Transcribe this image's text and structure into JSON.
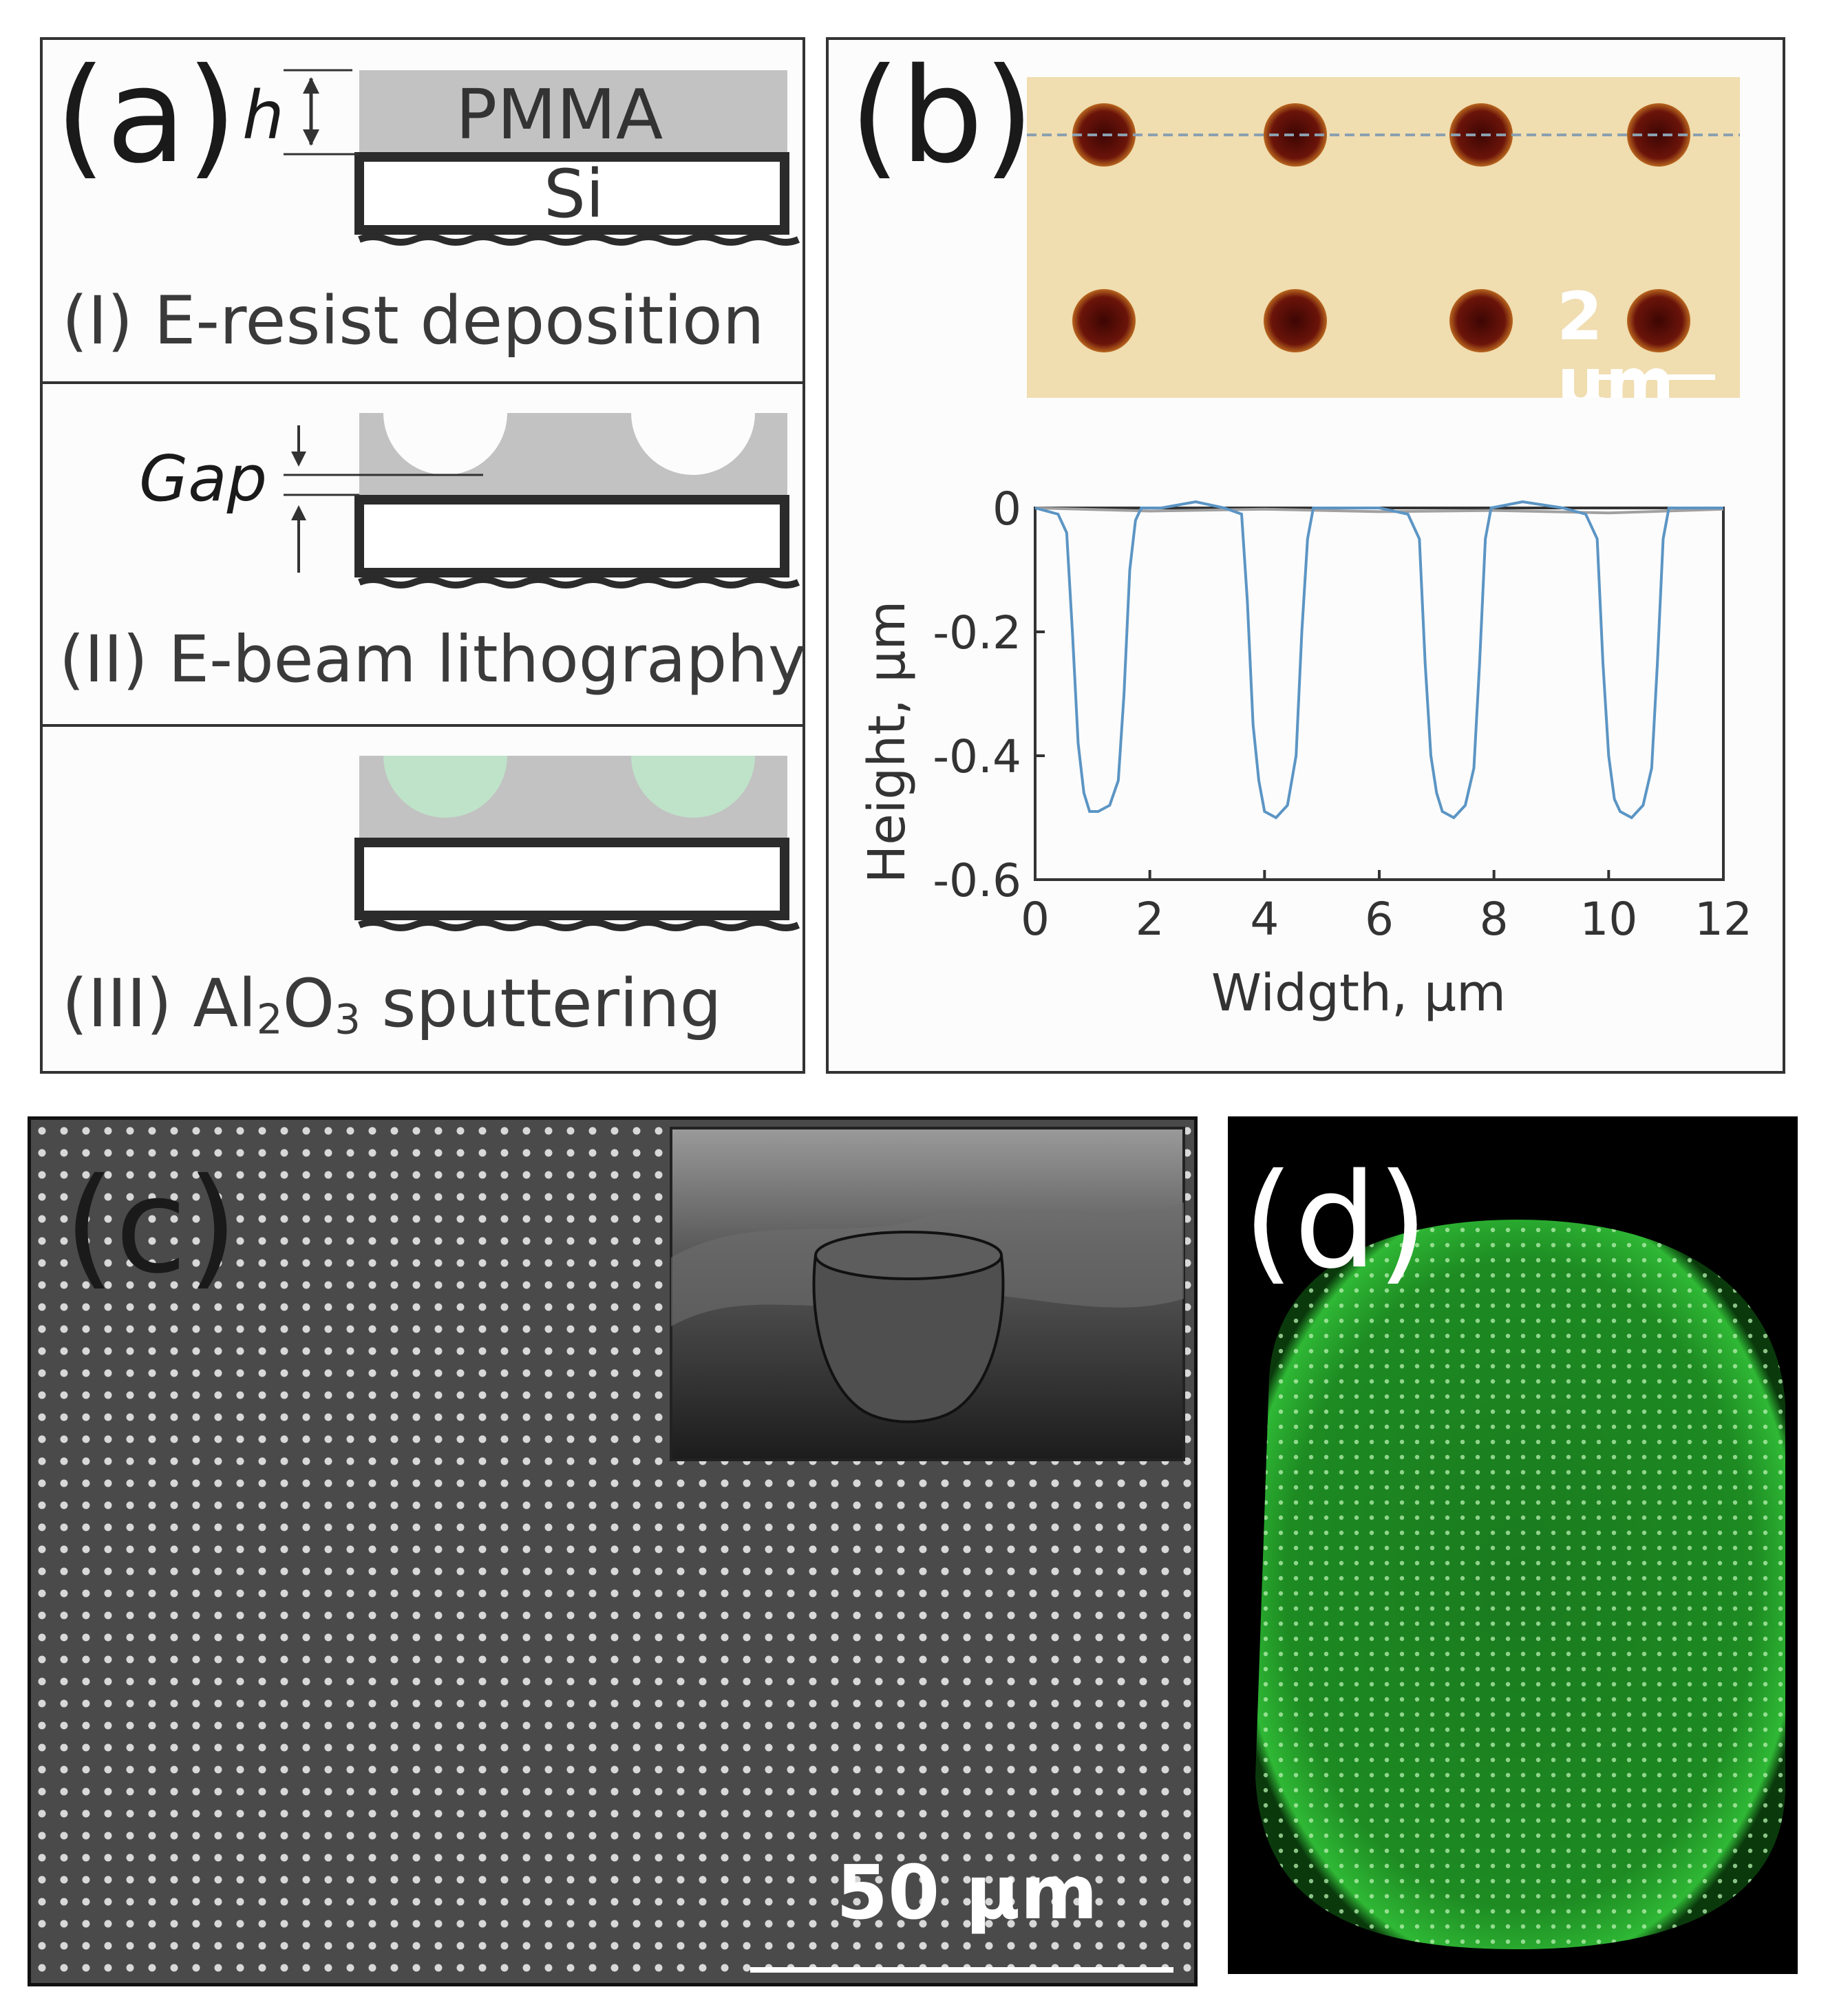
{
  "panel_a": {
    "label": "(a)",
    "steps": [
      {
        "label": "(I) E-resist deposition",
        "annotation": "h",
        "resist": "PMMA",
        "substrate": "Si"
      },
      {
        "label": "(II) E-beam lithography",
        "annotation": "Gap"
      },
      {
        "label_prefix": "(III) Al",
        "sub1": "2",
        "mid": "O",
        "sub2": "3",
        "label_suffix": " sputtering"
      }
    ],
    "colors": {
      "resist": "#c2c2c2",
      "alumina": "#bfe3c9",
      "outline": "#2b2b2b"
    }
  },
  "panel_b": {
    "label": "(b)",
    "scale_bar": "2 µm",
    "image_background": "#f0ddb0",
    "pit_color": "#5a0f08",
    "chart_data": {
      "type": "line",
      "xlabel": "Widgth, µm",
      "ylabel": "Height, µm",
      "xlim": [
        0,
        12
      ],
      "ylim": [
        -0.6,
        0.0
      ],
      "xticks": [
        "0",
        "2",
        "4",
        "6",
        "8",
        "10",
        "12"
      ],
      "yticks": [
        "0",
        "-0.2",
        "-0.4",
        "-0.6"
      ],
      "series": [
        {
          "color": "#5b95c4",
          "x": [
            0,
            0.4,
            0.55,
            0.65,
            0.75,
            0.85,
            0.95,
            1.1,
            1.3,
            1.45,
            1.55,
            1.65,
            1.75,
            1.85,
            2.2,
            2.8,
            3.3,
            3.6,
            3.7,
            3.8,
            3.9,
            4.0,
            4.2,
            4.4,
            4.55,
            4.65,
            4.75,
            4.85,
            5.3,
            6.0,
            6.5,
            6.7,
            6.8,
            6.9,
            7.0,
            7.1,
            7.3,
            7.5,
            7.65,
            7.75,
            7.85,
            7.95,
            8.5,
            9.2,
            9.6,
            9.8,
            9.9,
            10.0,
            10.1,
            10.2,
            10.4,
            10.6,
            10.75,
            10.85,
            10.95,
            11.05,
            11.5,
            12.0
          ],
          "y": [
            0,
            -0.01,
            -0.04,
            -0.2,
            -0.38,
            -0.46,
            -0.49,
            -0.49,
            -0.48,
            -0.44,
            -0.3,
            -0.1,
            -0.02,
            0.0,
            0.0,
            0.01,
            0.0,
            -0.01,
            -0.15,
            -0.35,
            -0.44,
            -0.49,
            -0.5,
            -0.48,
            -0.4,
            -0.2,
            -0.05,
            0.0,
            0.0,
            0.0,
            -0.01,
            -0.05,
            -0.25,
            -0.4,
            -0.46,
            -0.49,
            -0.5,
            -0.48,
            -0.42,
            -0.25,
            -0.05,
            0.0,
            0.01,
            0.0,
            -0.01,
            -0.05,
            -0.25,
            -0.4,
            -0.47,
            -0.49,
            -0.5,
            -0.48,
            -0.42,
            -0.25,
            -0.05,
            0.0,
            0.0,
            0.0
          ]
        },
        {
          "color": "#a0a0a0",
          "x": [
            0,
            2,
            4,
            6,
            8,
            10,
            12
          ],
          "y": [
            0,
            -0.005,
            -0.002,
            -0.006,
            -0.004,
            -0.008,
            -0.002
          ]
        }
      ]
    }
  },
  "panel_c": {
    "label": "(c)",
    "scale_bar": "50 µm",
    "background": "#4a4a4a",
    "dot_color": "#d8d8d8"
  },
  "panel_d": {
    "label": "(d)",
    "background": "#000000",
    "glow_color": "#1d8a22"
  }
}
